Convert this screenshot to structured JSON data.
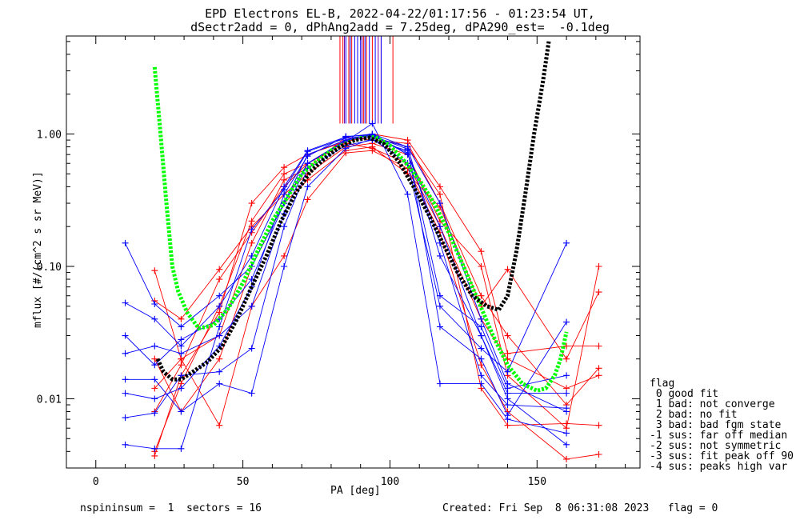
{
  "chart_data": {
    "type": "scatter",
    "title_line1": "EPD Electrons EL-B, 2022-04-22/01:17:56 - 01:23:54 UT,",
    "title_line2": "dSectr2add = 0, dPhAng2add = 7.25deg, dPA290_est=  -0.1deg",
    "xlabel": "PA [deg]",
    "ylabel": "mflux [#/(cm^2 s sr MeV)]",
    "xlim": [
      -10,
      185
    ],
    "ylim": [
      0.003,
      5.5
    ],
    "yscale": "log",
    "x_ticks": [
      0,
      50,
      100,
      150
    ],
    "x_tick_labels": [
      "0",
      "50",
      "100",
      "150"
    ],
    "y_ticks": [
      0.01,
      0.1,
      1.0
    ],
    "y_tick_labels": [
      "0.01",
      "0.10",
      "1.00"
    ],
    "colors": {
      "red": "#ff0000",
      "blue": "#0000ff",
      "green": "#00ff00",
      "black": "#000000",
      "purple": "#7a00aa"
    },
    "series": [
      {
        "color": "red",
        "values": [
          [
            20,
            0.004
          ],
          [
            29,
            0.013
          ],
          [
            42,
            0.05
          ],
          [
            53,
            0.22
          ],
          [
            64,
            0.5
          ],
          [
            72,
            0.6
          ],
          [
            85,
            0.85
          ],
          [
            94,
            0.78
          ],
          [
            106,
            0.6
          ],
          [
            117,
            0.2
          ],
          [
            131,
            0.04
          ],
          [
            140,
            0.02
          ],
          [
            160,
            0.012
          ],
          [
            171,
            0.015
          ]
        ]
      },
      {
        "color": "red",
        "values": [
          [
            20,
            0.093
          ],
          [
            29,
            0.02
          ],
          [
            42,
            0.03
          ],
          [
            53,
            0.15
          ],
          [
            64,
            0.45
          ],
          [
            72,
            0.55
          ],
          [
            85,
            0.95
          ],
          [
            94,
            0.9
          ],
          [
            106,
            0.85
          ],
          [
            117,
            0.3
          ],
          [
            131,
            0.06
          ],
          [
            140,
            0.03
          ],
          [
            160,
            0.009
          ],
          [
            171,
            0.017
          ]
        ]
      },
      {
        "color": "red",
        "values": [
          [
            20,
            0.055
          ],
          [
            29,
            0.04
          ],
          [
            42,
            0.095
          ],
          [
            53,
            0.2
          ],
          [
            64,
            0.35
          ],
          [
            72,
            0.5
          ],
          [
            85,
            0.8
          ],
          [
            94,
            0.85
          ],
          [
            106,
            0.7
          ],
          [
            117,
            0.22
          ],
          [
            131,
            0.1
          ],
          [
            140,
            0.015
          ],
          [
            160,
            0.006
          ],
          [
            171,
            0.1
          ]
        ]
      },
      {
        "color": "red",
        "values": [
          [
            20,
            0.012
          ],
          [
            29,
            0.02
          ],
          [
            42,
            0.0063
          ],
          [
            53,
            0.05
          ],
          [
            64,
            0.12
          ],
          [
            72,
            0.32
          ],
          [
            85,
            0.72
          ],
          [
            94,
            0.75
          ],
          [
            106,
            0.55
          ],
          [
            117,
            0.18
          ],
          [
            131,
            0.018
          ],
          [
            140,
            0.008
          ],
          [
            160,
            0.0035
          ],
          [
            171,
            0.0038
          ]
        ]
      },
      {
        "color": "red",
        "values": [
          [
            20,
            0.0037
          ],
          [
            29,
            0.015
          ],
          [
            42,
            0.045
          ],
          [
            53,
            0.3
          ],
          [
            64,
            0.56
          ],
          [
            72,
            0.7
          ],
          [
            85,
            0.88
          ],
          [
            94,
            0.95
          ],
          [
            106,
            0.8
          ],
          [
            117,
            0.35
          ],
          [
            131,
            0.012
          ],
          [
            140,
            0.0063
          ],
          [
            160,
            0.0065
          ],
          [
            171,
            0.0063
          ]
        ]
      },
      {
        "color": "red",
        "values": [
          [
            20,
            0.008
          ],
          [
            29,
            0.018
          ],
          [
            42,
            0.08
          ],
          [
            53,
            0.18
          ],
          [
            64,
            0.4
          ],
          [
            72,
            0.6
          ],
          [
            85,
            0.9
          ],
          [
            94,
            1.0
          ],
          [
            106,
            0.9
          ],
          [
            117,
            0.4
          ],
          [
            131,
            0.13
          ],
          [
            140,
            0.022
          ],
          [
            160,
            0.025
          ],
          [
            171,
            0.025
          ]
        ]
      },
      {
        "color": "red",
        "values": [
          [
            20,
            0.02
          ],
          [
            29,
            0.008
          ],
          [
            42,
            0.02
          ],
          [
            53,
            0.1
          ],
          [
            64,
            0.3
          ],
          [
            72,
            0.45
          ],
          [
            85,
            0.75
          ],
          [
            94,
            0.8
          ],
          [
            106,
            0.5
          ],
          [
            117,
            0.28
          ],
          [
            131,
            0.05
          ],
          [
            140,
            0.095
          ],
          [
            160,
            0.02
          ],
          [
            171,
            0.064
          ]
        ]
      },
      {
        "color": "blue",
        "values": [
          [
            10,
            0.15
          ],
          [
            20,
            0.052
          ],
          [
            29,
            0.035
          ],
          [
            42,
            0.06
          ],
          [
            53,
            0.1
          ],
          [
            64,
            0.3
          ],
          [
            72,
            0.7
          ],
          [
            85,
            0.9
          ],
          [
            94,
            0.95
          ],
          [
            106,
            0.8
          ],
          [
            117,
            0.12
          ],
          [
            131,
            0.03
          ],
          [
            140,
            0.01
          ],
          [
            160,
            0.0045
          ]
        ]
      },
      {
        "color": "blue",
        "values": [
          [
            10,
            0.053
          ],
          [
            20,
            0.04
          ],
          [
            29,
            0.025
          ],
          [
            42,
            0.05
          ],
          [
            53,
            0.12
          ],
          [
            64,
            0.4
          ],
          [
            72,
            0.75
          ],
          [
            85,
            0.95
          ],
          [
            94,
            1.0
          ],
          [
            106,
            0.8
          ],
          [
            117,
            0.3
          ],
          [
            131,
            0.04
          ],
          [
            140,
            0.013
          ],
          [
            160,
            0.008
          ]
        ]
      },
      {
        "color": "blue",
        "values": [
          [
            10,
            0.03
          ],
          [
            20,
            0.018
          ],
          [
            29,
            0.028
          ],
          [
            42,
            0.04
          ],
          [
            53,
            0.08
          ],
          [
            64,
            0.3
          ],
          [
            72,
            0.6
          ],
          [
            85,
            0.88
          ],
          [
            94,
            1.2
          ],
          [
            106,
            0.35
          ],
          [
            117,
            0.013
          ],
          [
            131,
            0.013
          ],
          [
            140,
            0.007
          ],
          [
            160,
            0.0055
          ]
        ]
      },
      {
        "color": "blue",
        "values": [
          [
            10,
            0.0072
          ],
          [
            20,
            0.0078
          ],
          [
            29,
            0.015
          ],
          [
            42,
            0.016
          ],
          [
            53,
            0.024
          ],
          [
            64,
            0.2
          ],
          [
            72,
            0.55
          ],
          [
            85,
            0.82
          ],
          [
            94,
            0.9
          ],
          [
            106,
            0.75
          ],
          [
            117,
            0.06
          ],
          [
            131,
            0.035
          ],
          [
            140,
            0.012
          ],
          [
            160,
            0.015
          ]
        ]
      },
      {
        "color": "blue",
        "values": [
          [
            10,
            0.0045
          ],
          [
            20,
            0.0042
          ],
          [
            29,
            0.0042
          ],
          [
            42,
            0.035
          ],
          [
            53,
            0.19
          ],
          [
            64,
            0.38
          ],
          [
            72,
            0.74
          ],
          [
            85,
            0.93
          ],
          [
            94,
            0.97
          ],
          [
            106,
            0.77
          ],
          [
            117,
            0.035
          ],
          [
            131,
            0.02
          ],
          [
            140,
            0.0075
          ],
          [
            160,
            0.038
          ]
        ]
      },
      {
        "color": "blue",
        "values": [
          [
            10,
            0.014
          ],
          [
            20,
            0.014
          ],
          [
            29,
            0.008
          ],
          [
            42,
            0.013
          ],
          [
            53,
            0.011
          ],
          [
            64,
            0.1
          ],
          [
            72,
            0.4
          ],
          [
            85,
            0.78
          ],
          [
            94,
            0.92
          ],
          [
            106,
            0.6
          ],
          [
            117,
            0.05
          ],
          [
            131,
            0.024
          ],
          [
            140,
            0.016
          ],
          [
            160,
            0.15
          ]
        ]
      },
      {
        "color": "blue",
        "values": [
          [
            10,
            0.022
          ],
          [
            20,
            0.025
          ],
          [
            29,
            0.022
          ],
          [
            42,
            0.03
          ],
          [
            53,
            0.05
          ],
          [
            64,
            0.25
          ],
          [
            72,
            0.6
          ],
          [
            85,
            0.9
          ],
          [
            94,
            1.0
          ],
          [
            106,
            0.7
          ],
          [
            117,
            0.2
          ],
          [
            131,
            0.03
          ],
          [
            140,
            0.011
          ],
          [
            160,
            0.011
          ]
        ]
      },
      {
        "color": "blue",
        "values": [
          [
            10,
            0.011
          ],
          [
            20,
            0.01
          ],
          [
            29,
            0.012
          ],
          [
            42,
            0.025
          ],
          [
            53,
            0.07
          ],
          [
            64,
            0.35
          ],
          [
            72,
            0.68
          ],
          [
            85,
            0.96
          ],
          [
            94,
            0.98
          ],
          [
            106,
            0.72
          ],
          [
            117,
            0.15
          ],
          [
            131,
            0.015
          ],
          [
            140,
            0.009
          ],
          [
            160,
            0.0085
          ]
        ]
      }
    ],
    "fit_curves": [
      {
        "color": "green",
        "values": [
          [
            20,
            3.2
          ],
          [
            22,
            1.0
          ],
          [
            24,
            0.3
          ],
          [
            26,
            0.1
          ],
          [
            28,
            0.065
          ],
          [
            31,
            0.045
          ],
          [
            35,
            0.034
          ],
          [
            40,
            0.036
          ],
          [
            45,
            0.048
          ],
          [
            50,
            0.075
          ],
          [
            55,
            0.13
          ],
          [
            60,
            0.22
          ],
          [
            65,
            0.33
          ],
          [
            70,
            0.5
          ],
          [
            75,
            0.62
          ],
          [
            80,
            0.75
          ],
          [
            85,
            0.85
          ],
          [
            90,
            0.93
          ],
          [
            95,
            0.95
          ],
          [
            100,
            0.82
          ],
          [
            105,
            0.62
          ],
          [
            110,
            0.45
          ],
          [
            115,
            0.3
          ],
          [
            120,
            0.18
          ],
          [
            125,
            0.1
          ],
          [
            130,
            0.055
          ],
          [
            135,
            0.03
          ],
          [
            140,
            0.018
          ],
          [
            145,
            0.013
          ],
          [
            150,
            0.0115
          ],
          [
            153,
            0.012
          ],
          [
            156,
            0.015
          ],
          [
            158,
            0.02
          ],
          [
            160,
            0.032
          ]
        ]
      },
      {
        "color": "black",
        "values": [
          [
            21,
            0.02
          ],
          [
            23,
            0.016
          ],
          [
            26,
            0.014
          ],
          [
            29,
            0.014
          ],
          [
            33,
            0.016
          ],
          [
            38,
            0.019
          ],
          [
            43,
            0.025
          ],
          [
            48,
            0.04
          ],
          [
            53,
            0.07
          ],
          [
            58,
            0.12
          ],
          [
            63,
            0.22
          ],
          [
            68,
            0.36
          ],
          [
            73,
            0.52
          ],
          [
            78,
            0.66
          ],
          [
            83,
            0.8
          ],
          [
            88,
            0.9
          ],
          [
            93,
            0.94
          ],
          [
            98,
            0.84
          ],
          [
            103,
            0.62
          ],
          [
            108,
            0.4
          ],
          [
            113,
            0.25
          ],
          [
            118,
            0.15
          ],
          [
            123,
            0.09
          ],
          [
            128,
            0.06
          ],
          [
            133,
            0.05
          ],
          [
            137,
            0.047
          ],
          [
            140,
            0.06
          ],
          [
            143,
            0.13
          ],
          [
            146,
            0.35
          ],
          [
            149,
            1.0
          ],
          [
            152,
            2.5
          ],
          [
            154,
            5.0
          ]
        ]
      }
    ],
    "vlines": {
      "y_bottom": 1.2,
      "red_x": [
        83,
        84,
        86,
        87,
        89,
        91,
        92,
        94,
        97,
        101
      ],
      "blue_x": [
        85,
        86.5,
        88,
        89,
        90,
        91.5,
        93,
        95,
        97
      ],
      "purple_x": [
        84.5,
        90.5,
        96
      ]
    }
  },
  "legend": {
    "title": "flag",
    "items": [
      " 0 good fit",
      " 1 bad: not converge",
      " 2 bad: no fit",
      " 3 bad: bad fgm state",
      "-1 sus: far off median",
      "-2 sus: not symmetric",
      "-3 sus: fit peak off 90",
      "-4 sus: peaks high var"
    ]
  },
  "footer": {
    "left": "nspininsum =  1  sectors = 16",
    "right": "Created: Fri Sep  8 06:31:08 2023   flag = 0"
  }
}
